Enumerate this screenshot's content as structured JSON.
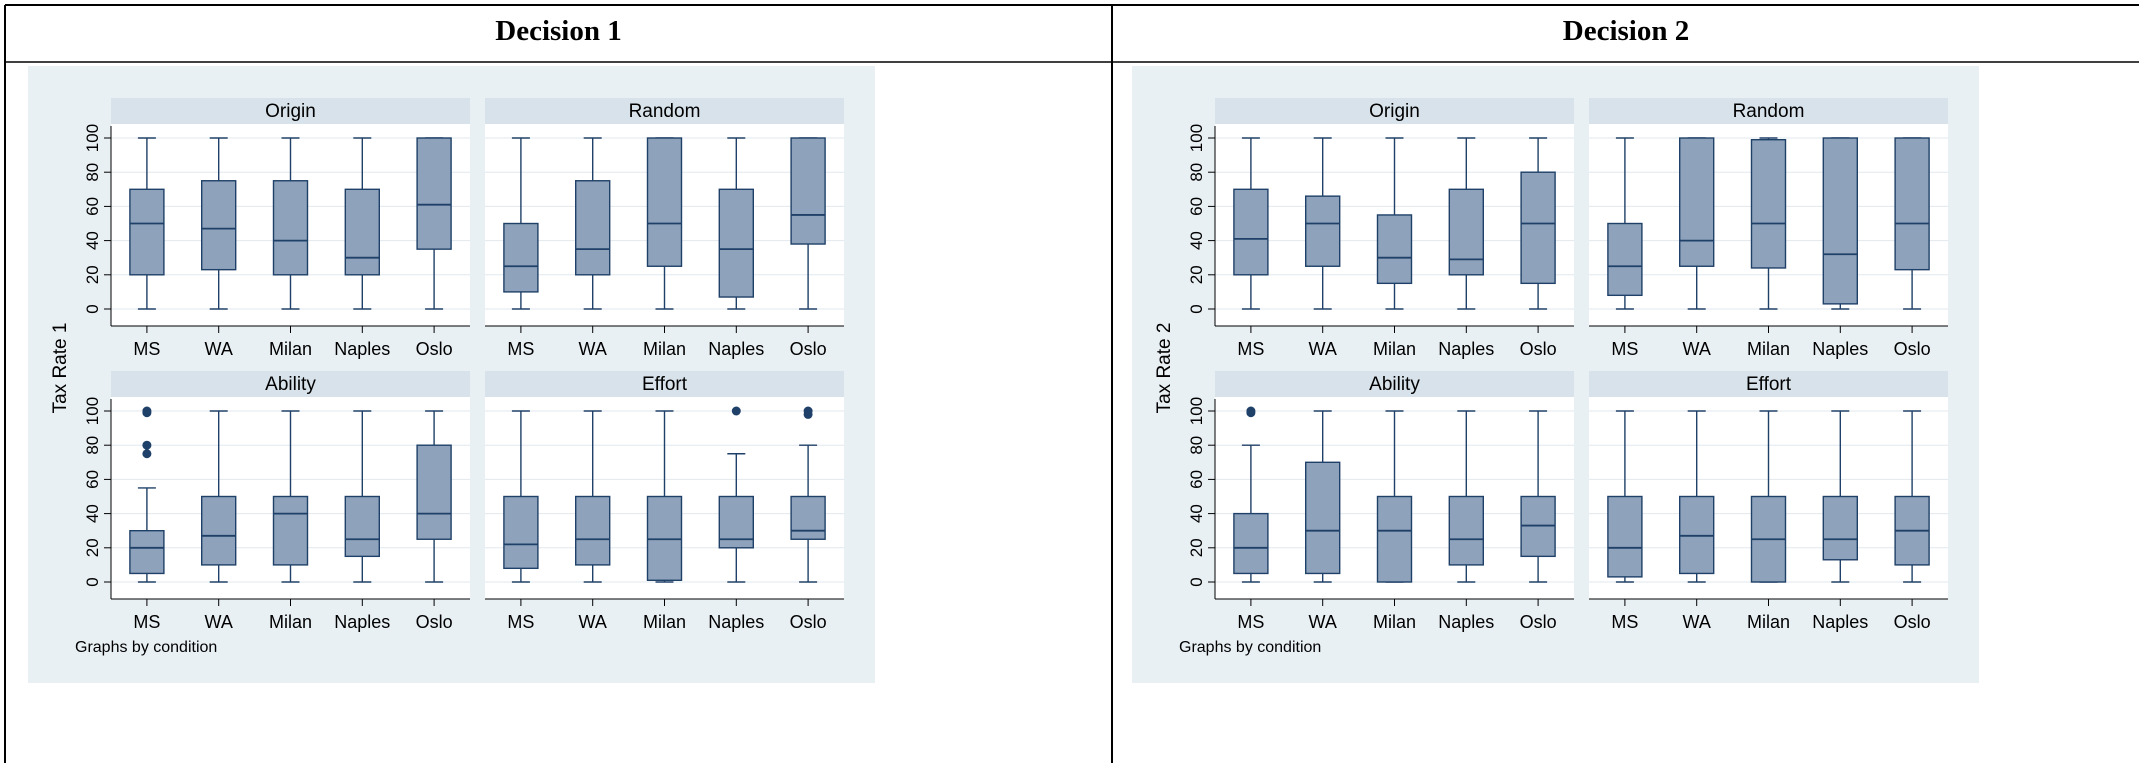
{
  "table": {
    "col1_header": "Decision 1",
    "col2_header": "Decision 2"
  },
  "colors": {
    "panel_bg": "#e9f0f4",
    "strip_bg": "#d7e2ea",
    "box_fill": "#8ea3bb",
    "box_line": "#1f4068",
    "grid": "#e2e8ee"
  },
  "chart_data": [
    {
      "type": "box",
      "ylabel": "Tax Rate 1",
      "note": "Graphs by condition",
      "categories": [
        "MS",
        "WA",
        "Milan",
        "Naples",
        "Oslo"
      ],
      "yticks": [
        0,
        20,
        40,
        60,
        80,
        100
      ],
      "ylim": [
        0,
        100
      ],
      "grid": true,
      "panels": [
        {
          "title": "Origin",
          "boxes": [
            {
              "min": 0,
              "q1": 20,
              "median": 50,
              "q3": 70,
              "max": 100,
              "outliers": []
            },
            {
              "min": 0,
              "q1": 23,
              "median": 47,
              "q3": 75,
              "max": 100,
              "outliers": []
            },
            {
              "min": 0,
              "q1": 20,
              "median": 40,
              "q3": 75,
              "max": 100,
              "outliers": []
            },
            {
              "min": 0,
              "q1": 20,
              "median": 30,
              "q3": 70,
              "max": 100,
              "outliers": []
            },
            {
              "min": 0,
              "q1": 35,
              "median": 61,
              "q3": 100,
              "max": 100,
              "outliers": []
            }
          ]
        },
        {
          "title": "Random",
          "boxes": [
            {
              "min": 0,
              "q1": 10,
              "median": 25,
              "q3": 50,
              "max": 100,
              "outliers": []
            },
            {
              "min": 0,
              "q1": 20,
              "median": 35,
              "q3": 75,
              "max": 100,
              "outliers": []
            },
            {
              "min": 0,
              "q1": 25,
              "median": 50,
              "q3": 100,
              "max": 100,
              "outliers": []
            },
            {
              "min": 0,
              "q1": 7,
              "median": 35,
              "q3": 70,
              "max": 100,
              "outliers": []
            },
            {
              "min": 0,
              "q1": 38,
              "median": 55,
              "q3": 100,
              "max": 100,
              "outliers": []
            }
          ]
        },
        {
          "title": "Ability",
          "boxes": [
            {
              "min": 0,
              "q1": 5,
              "median": 20,
              "q3": 30,
              "max": 55,
              "outliers": [
                75,
                80,
                99,
                100
              ]
            },
            {
              "min": 0,
              "q1": 10,
              "median": 27,
              "q3": 50,
              "max": 100,
              "outliers": []
            },
            {
              "min": 0,
              "q1": 10,
              "median": 40,
              "q3": 50,
              "max": 100,
              "outliers": []
            },
            {
              "min": 0,
              "q1": 15,
              "median": 25,
              "q3": 50,
              "max": 100,
              "outliers": []
            },
            {
              "min": 0,
              "q1": 25,
              "median": 40,
              "q3": 80,
              "max": 100,
              "outliers": []
            }
          ]
        },
        {
          "title": "Effort",
          "boxes": [
            {
              "min": 0,
              "q1": 8,
              "median": 22,
              "q3": 50,
              "max": 100,
              "outliers": []
            },
            {
              "min": 0,
              "q1": 10,
              "median": 25,
              "q3": 50,
              "max": 100,
              "outliers": []
            },
            {
              "min": 0,
              "q1": 1,
              "median": 25,
              "q3": 50,
              "max": 100,
              "outliers": []
            },
            {
              "min": 0,
              "q1": 20,
              "median": 25,
              "q3": 50,
              "max": 75,
              "outliers": [
                100
              ]
            },
            {
              "min": 0,
              "q1": 25,
              "median": 30,
              "q3": 50,
              "max": 80,
              "outliers": [
                98,
                100
              ]
            }
          ]
        }
      ]
    },
    {
      "type": "box",
      "ylabel": "Tax Rate 2",
      "note": "Graphs by condition",
      "categories": [
        "MS",
        "WA",
        "Milan",
        "Naples",
        "Oslo"
      ],
      "yticks": [
        0,
        20,
        40,
        60,
        80,
        100
      ],
      "ylim": [
        0,
        100
      ],
      "grid": true,
      "panels": [
        {
          "title": "Origin",
          "boxes": [
            {
              "min": 0,
              "q1": 20,
              "median": 41,
              "q3": 70,
              "max": 100,
              "outliers": []
            },
            {
              "min": 0,
              "q1": 25,
              "median": 50,
              "q3": 66,
              "max": 100,
              "outliers": []
            },
            {
              "min": 0,
              "q1": 15,
              "median": 30,
              "q3": 55,
              "max": 100,
              "outliers": []
            },
            {
              "min": 0,
              "q1": 20,
              "median": 29,
              "q3": 70,
              "max": 100,
              "outliers": []
            },
            {
              "min": 0,
              "q1": 15,
              "median": 50,
              "q3": 80,
              "max": 100,
              "outliers": []
            }
          ]
        },
        {
          "title": "Random",
          "boxes": [
            {
              "min": 0,
              "q1": 8,
              "median": 25,
              "q3": 50,
              "max": 100,
              "outliers": []
            },
            {
              "min": 0,
              "q1": 25,
              "median": 40,
              "q3": 100,
              "max": 100,
              "outliers": []
            },
            {
              "min": 0,
              "q1": 24,
              "median": 50,
              "q3": 99,
              "max": 100,
              "outliers": []
            },
            {
              "min": 0,
              "q1": 3,
              "median": 32,
              "q3": 100,
              "max": 100,
              "outliers": []
            },
            {
              "min": 0,
              "q1": 23,
              "median": 50,
              "q3": 100,
              "max": 100,
              "outliers": []
            }
          ]
        },
        {
          "title": "Ability",
          "boxes": [
            {
              "min": 0,
              "q1": 5,
              "median": 20,
              "q3": 40,
              "max": 80,
              "outliers": [
                99,
                100
              ]
            },
            {
              "min": 0,
              "q1": 5,
              "median": 30,
              "q3": 70,
              "max": 100,
              "outliers": []
            },
            {
              "min": 0,
              "q1": 0,
              "median": 30,
              "q3": 50,
              "max": 100,
              "outliers": []
            },
            {
              "min": 0,
              "q1": 10,
              "median": 25,
              "q3": 50,
              "max": 100,
              "outliers": []
            },
            {
              "min": 0,
              "q1": 15,
              "median": 33,
              "q3": 50,
              "max": 100,
              "outliers": []
            }
          ]
        },
        {
          "title": "Effort",
          "boxes": [
            {
              "min": 0,
              "q1": 3,
              "median": 20,
              "q3": 50,
              "max": 100,
              "outliers": []
            },
            {
              "min": 0,
              "q1": 5,
              "median": 27,
              "q3": 50,
              "max": 100,
              "outliers": []
            },
            {
              "min": 0,
              "q1": 0,
              "median": 25,
              "q3": 50,
              "max": 100,
              "outliers": []
            },
            {
              "min": 0,
              "q1": 13,
              "median": 25,
              "q3": 50,
              "max": 100,
              "outliers": []
            },
            {
              "min": 0,
              "q1": 10,
              "median": 30,
              "q3": 50,
              "max": 100,
              "outliers": []
            }
          ]
        }
      ]
    }
  ]
}
